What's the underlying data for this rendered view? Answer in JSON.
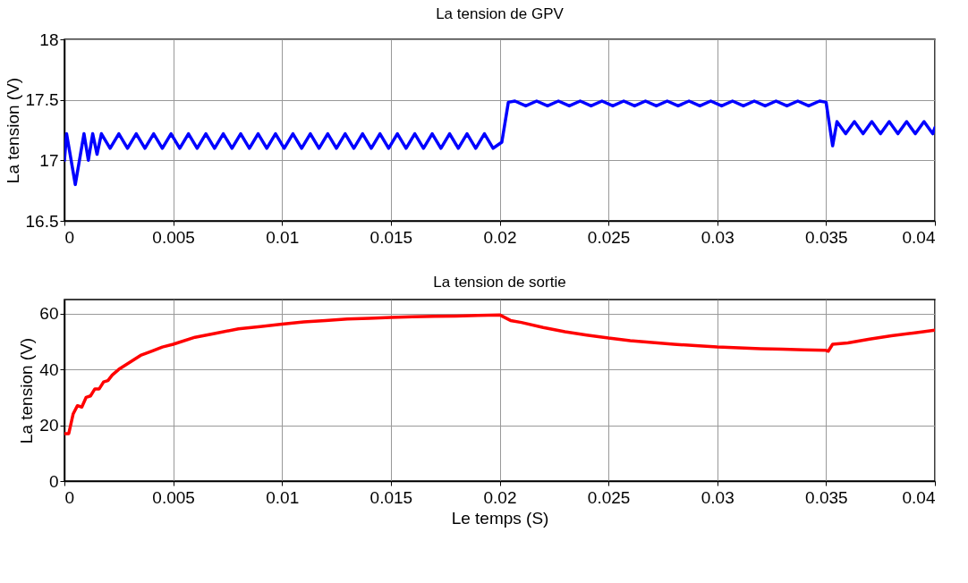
{
  "chart_data": [
    {
      "type": "line",
      "title": "La tension de GPV",
      "ylabel": "La tension (V)",
      "xlim": [
        0,
        0.04
      ],
      "xticks": [
        0,
        0.005,
        0.01,
        0.015,
        0.02,
        0.025,
        0.03,
        0.035,
        0.04
      ],
      "ylim": [
        16.5,
        18
      ],
      "yticks": [
        16.5,
        17,
        17.5,
        18
      ],
      "grid": true,
      "line_style": "solid",
      "x": [
        0,
        0.0001,
        0.0005,
        0.0009,
        0.0011,
        0.0013,
        0.0015,
        0.0017,
        0.0021,
        0.0025,
        0.0029,
        0.0033,
        0.0037,
        0.0041,
        0.0045,
        0.0049,
        0.0053,
        0.0057,
        0.0061,
        0.0065,
        0.0069,
        0.0073,
        0.0077,
        0.0081,
        0.0085,
        0.0089,
        0.0093,
        0.0097,
        0.0101,
        0.0105,
        0.0109,
        0.0113,
        0.0117,
        0.0121,
        0.0125,
        0.0129,
        0.0133,
        0.0137,
        0.0141,
        0.0145,
        0.0149,
        0.0153,
        0.0157,
        0.0161,
        0.0165,
        0.0169,
        0.0173,
        0.0177,
        0.0181,
        0.0185,
        0.0189,
        0.0193,
        0.0197,
        0.0201,
        0.0204,
        0.0207,
        0.0212,
        0.0217,
        0.0222,
        0.0227,
        0.0232,
        0.0237,
        0.0242,
        0.0247,
        0.0252,
        0.0257,
        0.0262,
        0.0267,
        0.0272,
        0.0277,
        0.0282,
        0.0287,
        0.0292,
        0.0297,
        0.0302,
        0.0307,
        0.0312,
        0.0317,
        0.0322,
        0.0327,
        0.0332,
        0.0337,
        0.0342,
        0.0347,
        0.035,
        0.0353,
        0.0355,
        0.0359,
        0.0363,
        0.0367,
        0.0371,
        0.0375,
        0.0379,
        0.0383,
        0.0387,
        0.0391,
        0.0395,
        0.0399,
        0.04
      ],
      "series": [
        {
          "color": "#0000ff",
          "values": [
            17.0,
            17.22,
            16.8,
            17.22,
            17.0,
            17.22,
            17.05,
            17.22,
            17.1,
            17.22,
            17.1,
            17.22,
            17.1,
            17.22,
            17.1,
            17.22,
            17.1,
            17.22,
            17.1,
            17.22,
            17.1,
            17.22,
            17.1,
            17.22,
            17.1,
            17.22,
            17.1,
            17.22,
            17.1,
            17.22,
            17.1,
            17.22,
            17.1,
            17.22,
            17.1,
            17.22,
            17.1,
            17.22,
            17.1,
            17.22,
            17.1,
            17.22,
            17.1,
            17.22,
            17.1,
            17.22,
            17.1,
            17.22,
            17.1,
            17.22,
            17.1,
            17.22,
            17.1,
            17.15,
            17.48,
            17.49,
            17.45,
            17.49,
            17.45,
            17.49,
            17.45,
            17.49,
            17.45,
            17.49,
            17.45,
            17.49,
            17.45,
            17.49,
            17.45,
            17.49,
            17.45,
            17.49,
            17.45,
            17.49,
            17.45,
            17.49,
            17.45,
            17.49,
            17.45,
            17.49,
            17.45,
            17.49,
            17.45,
            17.49,
            17.48,
            17.12,
            17.32,
            17.22,
            17.32,
            17.22,
            17.32,
            17.22,
            17.32,
            17.22,
            17.32,
            17.22,
            17.32,
            17.22,
            17.27
          ]
        }
      ]
    },
    {
      "type": "line",
      "title": "La tension de sortie",
      "xlabel": "Le temps (S)",
      "ylabel": "La tension (V)",
      "xlim": [
        0,
        0.04
      ],
      "xticks": [
        0,
        0.005,
        0.01,
        0.015,
        0.02,
        0.025,
        0.03,
        0.035,
        0.04
      ],
      "ylim": [
        0,
        65
      ],
      "yticks": [
        0,
        20,
        40,
        60
      ],
      "grid": true,
      "line_style": "solid",
      "x": [
        0,
        0.0002,
        0.0004,
        0.0006,
        0.0008,
        0.001,
        0.0012,
        0.0014,
        0.0016,
        0.0018,
        0.002,
        0.0022,
        0.0025,
        0.003,
        0.0035,
        0.004,
        0.0045,
        0.005,
        0.006,
        0.007,
        0.008,
        0.009,
        0.01,
        0.011,
        0.012,
        0.013,
        0.014,
        0.015,
        0.016,
        0.017,
        0.018,
        0.019,
        0.02,
        0.0205,
        0.021,
        0.022,
        0.023,
        0.024,
        0.025,
        0.026,
        0.027,
        0.028,
        0.029,
        0.03,
        0.031,
        0.032,
        0.033,
        0.034,
        0.035,
        0.0351,
        0.0353,
        0.036,
        0.037,
        0.038,
        0.039,
        0.04
      ],
      "series": [
        {
          "color": "#ff0000",
          "values": [
            17,
            17,
            24,
            27,
            26.5,
            30,
            30.5,
            33,
            33,
            35.5,
            36,
            38,
            40,
            42.5,
            45,
            46.5,
            48,
            49,
            51.5,
            53,
            54.5,
            55.3,
            56.2,
            57,
            57.5,
            58,
            58.3,
            58.6,
            58.8,
            59,
            59.1,
            59.3,
            59.5,
            57.5,
            56.8,
            55,
            53.5,
            52.3,
            51.2,
            50.3,
            49.6,
            49,
            48.5,
            48,
            47.7,
            47.4,
            47.2,
            47,
            46.8,
            46.5,
            49,
            49.5,
            50.8,
            52,
            53,
            54
          ]
        }
      ]
    }
  ]
}
